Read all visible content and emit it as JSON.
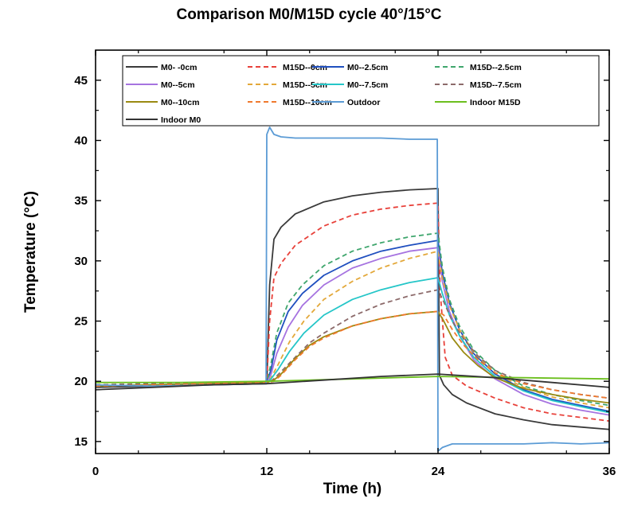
{
  "chart_data": {
    "type": "line",
    "title": "Comparison M0/M15D cycle 40°/15°C",
    "xlabel": "Time (h)",
    "ylabel": "Temperature (°C)",
    "xlim": [
      0,
      36
    ],
    "ylim": [
      14,
      47.5
    ],
    "xticks": [
      0,
      12,
      24,
      36
    ],
    "yticks": [
      15,
      20,
      25,
      30,
      35,
      40,
      45
    ],
    "grid": false,
    "legend_position": "top",
    "series": [
      {
        "name": "M0- -0cm",
        "color": "#3a3a3a",
        "dash": "solid",
        "x": [
          0,
          4,
          8,
          12,
          12.2,
          12.5,
          13,
          14,
          16,
          18,
          20,
          22,
          24,
          24.1,
          24.4,
          25,
          26,
          28,
          30,
          32,
          34,
          36
        ],
        "y": [
          19.5,
          19.6,
          19.7,
          19.8,
          28.0,
          31.8,
          32.8,
          33.9,
          34.9,
          35.4,
          35.7,
          35.9,
          36.0,
          20.5,
          19.7,
          18.9,
          18.2,
          17.3,
          16.8,
          16.4,
          16.2,
          16.0
        ]
      },
      {
        "name": "M15D--0cm",
        "color": "#e8413a",
        "dash": "6,4",
        "x": [
          0,
          4,
          8,
          12,
          12.2,
          12.5,
          13,
          14,
          16,
          18,
          20,
          22,
          24,
          24.15,
          24.5,
          25,
          26,
          28,
          30,
          32,
          34,
          36
        ],
        "y": [
          19.7,
          19.7,
          19.8,
          19.9,
          25.0,
          28.6,
          29.8,
          31.3,
          32.9,
          33.8,
          34.3,
          34.6,
          34.8,
          27.5,
          22.0,
          20.5,
          19.6,
          18.6,
          17.8,
          17.3,
          17.0,
          16.7
        ]
      },
      {
        "name": "M0--2.5cm",
        "color": "#1f4fbf",
        "dash": "solid",
        "x": [
          0,
          4,
          8,
          12,
          12.3,
          12.7,
          13.5,
          14.5,
          16,
          18,
          20,
          22,
          24,
          24.3,
          24.8,
          25.5,
          26.5,
          28,
          30,
          32,
          34,
          36
        ],
        "y": [
          19.6,
          19.7,
          19.8,
          19.9,
          21.0,
          23.4,
          25.8,
          27.3,
          28.8,
          30.0,
          30.8,
          31.3,
          31.7,
          29.0,
          26.5,
          24.3,
          22.3,
          20.6,
          19.3,
          18.5,
          18.0,
          17.5
        ]
      },
      {
        "name": "M15D--2.5cm",
        "color": "#3fa66d",
        "dash": "6,4",
        "x": [
          0,
          4,
          8,
          12,
          12.3,
          12.7,
          13.5,
          14.5,
          16,
          18,
          20,
          22,
          24,
          24.3,
          24.8,
          25.5,
          26.5,
          28,
          30,
          32,
          34,
          36
        ],
        "y": [
          19.7,
          19.8,
          19.8,
          19.9,
          21.5,
          24.0,
          26.5,
          28.0,
          29.6,
          30.8,
          31.5,
          32.0,
          32.3,
          29.5,
          26.8,
          24.6,
          22.6,
          20.9,
          19.6,
          18.9,
          18.4,
          18.0
        ]
      },
      {
        "name": "M0--5cm",
        "color": "#a673e0",
        "dash": "solid",
        "x": [
          0,
          4,
          8,
          12,
          12.3,
          12.7,
          13.5,
          14.5,
          16,
          18,
          20,
          22,
          24,
          24.3,
          24.8,
          25.5,
          26.5,
          28,
          30,
          32,
          34,
          36
        ],
        "y": [
          19.6,
          19.7,
          19.8,
          19.9,
          20.6,
          22.3,
          24.5,
          26.3,
          28.0,
          29.4,
          30.2,
          30.8,
          31.1,
          28.3,
          25.8,
          23.8,
          21.8,
          20.2,
          18.9,
          18.1,
          17.6,
          17.2
        ]
      },
      {
        "name": "M15D--5cm",
        "color": "#e3a83a",
        "dash": "6,4",
        "x": [
          0,
          4,
          8,
          12,
          12.3,
          12.8,
          13.6,
          14.6,
          16,
          18,
          20,
          22,
          24,
          24.3,
          24.8,
          25.5,
          26.5,
          28,
          30,
          32,
          34,
          36
        ],
        "y": [
          19.6,
          19.7,
          19.8,
          19.9,
          20.3,
          21.4,
          23.3,
          25.0,
          26.8,
          28.3,
          29.4,
          30.2,
          30.8,
          28.6,
          26.3,
          24.3,
          22.4,
          20.7,
          19.5,
          18.7,
          18.2,
          17.8
        ]
      },
      {
        "name": "M0--7.5cm",
        "color": "#25c6c8",
        "dash": "solid",
        "x": [
          0,
          4,
          8,
          12,
          12.3,
          12.8,
          13.6,
          14.6,
          16,
          18,
          20,
          22,
          24,
          24.3,
          24.8,
          25.5,
          26.5,
          28,
          30,
          32,
          34,
          36
        ],
        "y": [
          19.6,
          19.7,
          19.8,
          19.9,
          20.2,
          21.0,
          22.5,
          24.0,
          25.5,
          26.8,
          27.6,
          28.2,
          28.6,
          27.3,
          25.5,
          23.8,
          22.0,
          20.4,
          19.2,
          18.4,
          17.9,
          17.4
        ]
      },
      {
        "name": "M15D--7.5cm",
        "color": "#8c6a6a",
        "dash": "6,4",
        "x": [
          0,
          4,
          8,
          12,
          12.4,
          13,
          14,
          15,
          16,
          18,
          20,
          22,
          24,
          24.4,
          25,
          25.8,
          26.8,
          28,
          30,
          32,
          34,
          36
        ],
        "y": [
          19.7,
          19.8,
          19.8,
          19.9,
          20.1,
          20.8,
          22.0,
          23.2,
          24.0,
          25.4,
          26.4,
          27.1,
          27.6,
          26.6,
          25.0,
          23.5,
          22.1,
          20.9,
          19.9,
          19.3,
          18.9,
          18.6
        ]
      },
      {
        "name": "M0--10cm",
        "color": "#9a8a12",
        "dash": "solid",
        "x": [
          0,
          4,
          8,
          12,
          12.5,
          13,
          14,
          15,
          16,
          18,
          20,
          22,
          24,
          24.4,
          25,
          25.8,
          26.8,
          28,
          30,
          32,
          34,
          36
        ],
        "y": [
          19.6,
          19.7,
          19.8,
          19.9,
          20.1,
          20.6,
          21.9,
          23.0,
          23.7,
          24.6,
          25.2,
          25.6,
          25.8,
          25.0,
          23.6,
          22.4,
          21.3,
          20.3,
          19.4,
          18.9,
          18.5,
          18.2
        ]
      },
      {
        "name": "M15D--10cm",
        "color": "#f07a2e",
        "dash": "6,4",
        "x": [
          0,
          4,
          8,
          12,
          12.5,
          13,
          14,
          15,
          16,
          18,
          20,
          22,
          24,
          24.4,
          25,
          25.8,
          26.8,
          28,
          30,
          32,
          34,
          36
        ],
        "y": [
          19.6,
          19.7,
          19.8,
          19.9,
          20.0,
          20.5,
          21.8,
          22.9,
          23.6,
          24.6,
          25.2,
          25.6,
          25.8,
          25.5,
          24.3,
          23.0,
          21.8,
          20.7,
          19.8,
          19.3,
          18.9,
          18.6
        ]
      },
      {
        "name": "Outdoor",
        "color": "#5b9bd5",
        "dash": "solid",
        "x": [
          0,
          4,
          8,
          11.95,
          12.0,
          12.2,
          12.5,
          13,
          14,
          16,
          18,
          20,
          22,
          23.95,
          24.0,
          24.3,
          25,
          26,
          28,
          30,
          32,
          34,
          36
        ],
        "y": [
          19.7,
          19.6,
          19.7,
          19.8,
          40.5,
          41.1,
          40.5,
          40.3,
          40.2,
          40.2,
          40.2,
          40.2,
          40.1,
          40.1,
          14.2,
          14.5,
          14.8,
          14.8,
          14.8,
          14.8,
          14.9,
          14.8,
          14.9
        ]
      },
      {
        "name": "Indoor M15D",
        "color": "#6cbf1e",
        "dash": "solid",
        "x": [
          0,
          6,
          12,
          18,
          24,
          30,
          36
        ],
        "y": [
          19.9,
          19.9,
          20.0,
          20.2,
          20.4,
          20.3,
          20.2
        ]
      },
      {
        "name": "Indoor M0",
        "color": "#333333",
        "dash": "solid",
        "x": [
          0,
          4,
          8,
          12,
          16,
          20,
          24,
          28,
          32,
          36
        ],
        "y": [
          19.3,
          19.5,
          19.7,
          19.8,
          20.1,
          20.4,
          20.6,
          20.3,
          19.9,
          19.5
        ]
      }
    ]
  }
}
